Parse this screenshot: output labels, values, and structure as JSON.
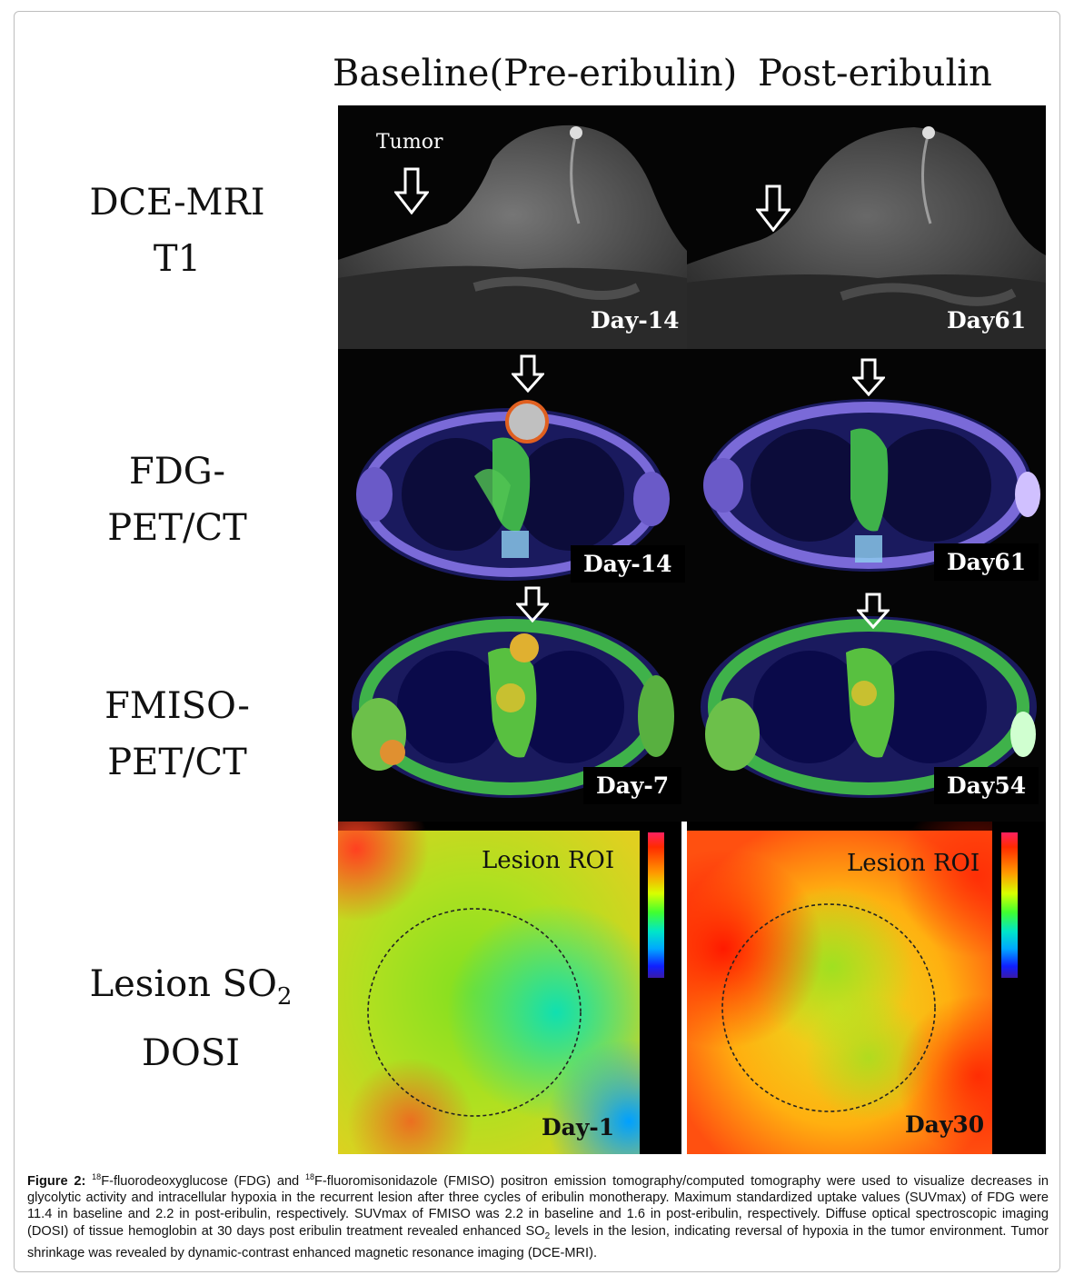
{
  "columns": {
    "baseline": "Baseline(Pre-eribulin)",
    "post": "Post-eribulin"
  },
  "rows": {
    "mri": [
      "DCE-MRI",
      "T1"
    ],
    "fdg": [
      "FDG-",
      "PET/CT"
    ],
    "fmiso": [
      "FMISO-",
      "PET/CT"
    ],
    "dosi": {
      "line1": "Lesion SO",
      "sub": "2",
      "line2": "DOSI"
    }
  },
  "annotations": {
    "tumor": "Tumor",
    "roi_left": "Lesion ROI",
    "roi_right": "Lesion ROI"
  },
  "days": {
    "mri_left": "Day-14",
    "mri_right": "Day61",
    "fdg_left": "Day-14",
    "fdg_right": "Day61",
    "fmiso_left": "Day-7",
    "fmiso_right": "Day54",
    "dosi_left": "Day-1",
    "dosi_right": "Day30"
  },
  "caption": {
    "label": "Figure 2:",
    "sup": "18",
    "part1": "F-fluorodeoxyglucose (FDG) and ",
    "part2": "F-fluoromisonidazole (FMISO) positron emission tomography/computed tomography were used to visualize decreases in glycolytic activity and intracellular hypoxia in the recurrent lesion after three cycles of eribulin monotherapy. Maximum standardized uptake values (SUVmax) of FDG were 11.4 in baseline and 2.2 in post-eribulin, respectively. SUVmax of FMISO was 2.2 in baseline and 1.6 in post-eribulin, respectively. Diffuse optical spectroscopic imaging (DOSI) of tissue hemoglobin at 30 days post eribulin treatment revealed enhanced SO",
    "sub": "2",
    "part3": " levels in the lesion, indicating reversal of hypoxia in the tumor environment. Tumor shrinkage was revealed by dynamic-contrast enhanced magnetic resonance imaging (DCE-MRI)."
  }
}
